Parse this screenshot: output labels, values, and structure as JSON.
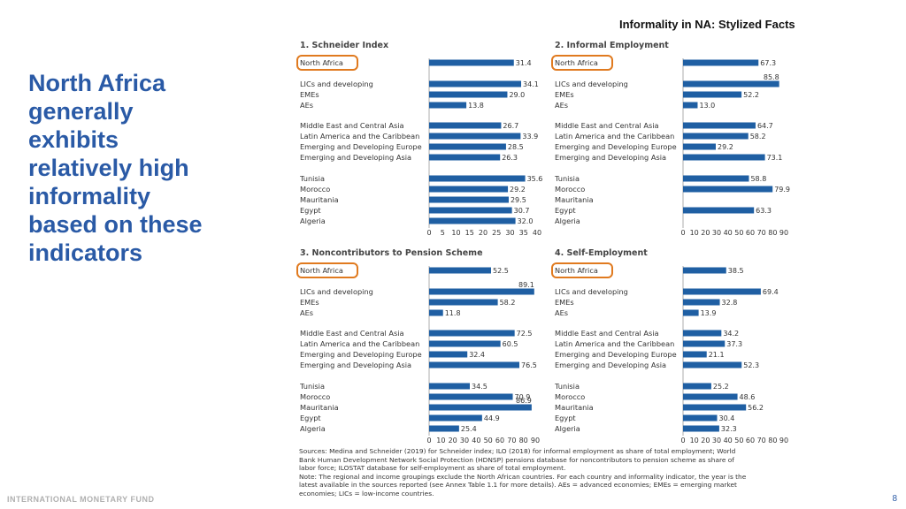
{
  "header": {
    "title": "Informality in NA: Stylized Facts"
  },
  "headline": {
    "lines": [
      "North Africa",
      "generally",
      "exhibits",
      "relatively high",
      "informality",
      "based on these",
      "indicators"
    ]
  },
  "footer": {
    "org": "INTERNATIONAL MONETARY FUND",
    "page": "8"
  },
  "colors": {
    "bar": "#1f5fa3",
    "highlight_box": "#e07a1f",
    "headline": "#2a5aa6"
  },
  "row_labels": [
    "North Africa",
    "LICs and developing",
    "EMEs",
    "AEs",
    "Middle East and Central Asia",
    "Latin America and the Caribbean",
    "Emerging and Developing Europe",
    "Emerging and Developing Asia",
    "Tunisia",
    "Morocco",
    "Mauritania",
    "Egypt",
    "Algeria"
  ],
  "notes": [
    "Sources: Medina and Schneider (2019) for Schneider index; ILO (2018) for informal employment as share of total employment; World",
    "Bank Human Development Network Social Protection (HDNSP) pensions database for noncontributors to pension scheme as share of",
    "labor force; ILOSTAT database for self-employment as share of total employment.",
    "Note: The regional and income groupings exclude the North African countries. For each country and informality indicator, the year is the",
    "latest available in the sources reported (see Annex Table 1.1 for more details). AEs = advanced economies; EMEs = emerging market",
    "economies; LICs = low-income countries."
  ],
  "chart_data": [
    {
      "type": "bar",
      "orientation": "horizontal",
      "title": "1. Schneider Index",
      "xlim": [
        0,
        40
      ],
      "xticks": [
        "0",
        "5",
        "10",
        "15",
        "20",
        "25",
        "30",
        "35",
        "40"
      ],
      "values": [
        31.4,
        34.1,
        29.0,
        13.8,
        26.7,
        33.9,
        28.5,
        26.3,
        35.6,
        29.2,
        29.5,
        30.7,
        32.0
      ],
      "value_labels": [
        "31.4",
        "34.1",
        "29.0",
        "13.8",
        "26.7",
        "33.9",
        "28.5",
        "26.3",
        "35.6",
        "29.2",
        "29.5",
        "30.7",
        "32.0"
      ]
    },
    {
      "type": "bar",
      "orientation": "horizontal",
      "title": "2. Informal Employment",
      "xlim": [
        0,
        90
      ],
      "xticks": [
        "0",
        "10",
        "20",
        "30",
        "40",
        "50",
        "60",
        "70",
        "80",
        "90"
      ],
      "values": [
        67.3,
        85.8,
        52.2,
        13.0,
        64.7,
        58.2,
        29.2,
        73.1,
        58.8,
        79.9,
        null,
        63.3,
        null
      ],
      "value_labels": [
        "67.3",
        "85.8",
        "52.2",
        "13.0",
        "64.7",
        "58.2",
        "29.2",
        "73.1",
        "58.8",
        "79.9",
        "",
        "63.3",
        ""
      ]
    },
    {
      "type": "bar",
      "orientation": "horizontal",
      "title": "3. Noncontributors to Pension Scheme",
      "xlim": [
        0,
        90
      ],
      "xticks": [
        "0",
        "10",
        "20",
        "30",
        "40",
        "50",
        "60",
        "70",
        "80",
        "90"
      ],
      "values": [
        52.5,
        89.1,
        58.2,
        11.8,
        72.5,
        60.5,
        32.4,
        76.5,
        34.5,
        70.9,
        86.9,
        44.9,
        25.4
      ],
      "value_labels": [
        "52.5",
        "89.1",
        "58.2",
        "11.8",
        "72.5",
        "60.5",
        "32.4",
        "76.5",
        "34.5",
        "70.9",
        "86.9",
        "44.9",
        "25.4"
      ]
    },
    {
      "type": "bar",
      "orientation": "horizontal",
      "title": "4. Self-Employment",
      "xlim": [
        0,
        90
      ],
      "xticks": [
        "0",
        "10",
        "20",
        "30",
        "40",
        "50",
        "60",
        "70",
        "80",
        "90"
      ],
      "values": [
        38.5,
        69.4,
        32.8,
        13.9,
        34.2,
        37.3,
        21.1,
        52.3,
        25.2,
        48.6,
        56.2,
        30.4,
        32.3
      ],
      "value_labels": [
        "38.5",
        "69.4",
        "32.8",
        "13.9",
        "34.2",
        "37.3",
        "21.1",
        "52.3",
        "25.2",
        "48.6",
        "56.2",
        "30.4",
        "32.3"
      ]
    }
  ]
}
